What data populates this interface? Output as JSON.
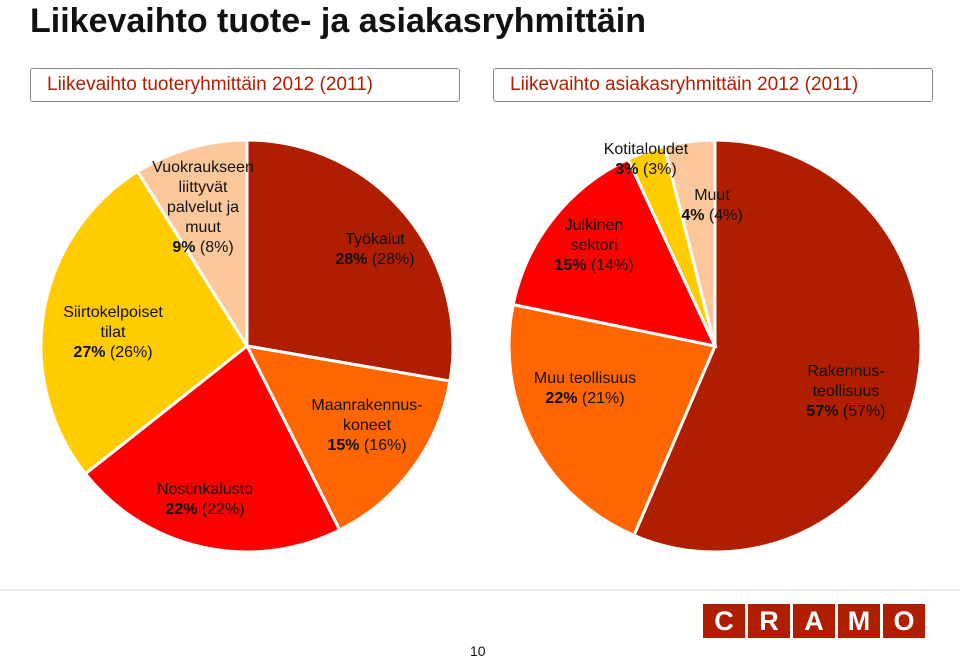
{
  "title": "Liikevaihto tuote- ja asiakasryhmittäin",
  "subheads": {
    "left": "Liikevaihto tuoteryhmittäin 2012 (2011)",
    "right": "Liikevaihto asiakasryhmittäin 2012 (2011)"
  },
  "colors": {
    "accent": "#b01e00",
    "dark_red": "#b01e00",
    "red": "#ff0000",
    "orange": "#ff6600",
    "yellow": "#ffcc00",
    "peach": "#fcc89b"
  },
  "chart_data": [
    {
      "type": "pie",
      "title": "Liikevaihto tuoteryhmittäin 2012 (2011)",
      "slices": [
        {
          "label": [
            "Työkalut"
          ],
          "value": 28,
          "prev": 28,
          "color": "#b01e00"
        },
        {
          "label": [
            "Maanrakennus-",
            "koneet"
          ],
          "value": 15,
          "prev": 16,
          "color": "#ff6600"
        },
        {
          "label": [
            "Nostinkalusto"
          ],
          "value": 22,
          "prev": 22,
          "color": "#ff0000"
        },
        {
          "label": [
            "Siirtokelpoiset",
            "tilat"
          ],
          "value": 27,
          "prev": 26,
          "color": "#ffcc00"
        },
        {
          "label": [
            "Vuokraukseen",
            "liittyvät",
            "palvelut ja",
            "muut"
          ],
          "value": 9,
          "prev": 8,
          "color": "#fcc89b"
        }
      ]
    },
    {
      "type": "pie",
      "title": "Liikevaihto asiakasryhmittäin 2012 (2011)",
      "slices": [
        {
          "label": [
            "Rakennus-",
            "teollisuus"
          ],
          "value": 57,
          "prev": 57,
          "color": "#b01e00"
        },
        {
          "label": [
            "Muu teollisuus"
          ],
          "value": 22,
          "prev": 21,
          "color": "#ff6600"
        },
        {
          "label": [
            "Julkinen",
            "sektori"
          ],
          "value": 15,
          "prev": 14,
          "color": "#ff0000"
        },
        {
          "label": [
            "Kotitaloudet"
          ],
          "value": 3,
          "prev": 3,
          "color": "#ffcc00"
        },
        {
          "label": [
            "Muut"
          ],
          "value": 4,
          "prev": 4,
          "color": "#fcc89b"
        }
      ]
    }
  ],
  "footer": {
    "page_number": "10",
    "logo_letters": [
      "C",
      "R",
      "A",
      "M",
      "O"
    ]
  }
}
